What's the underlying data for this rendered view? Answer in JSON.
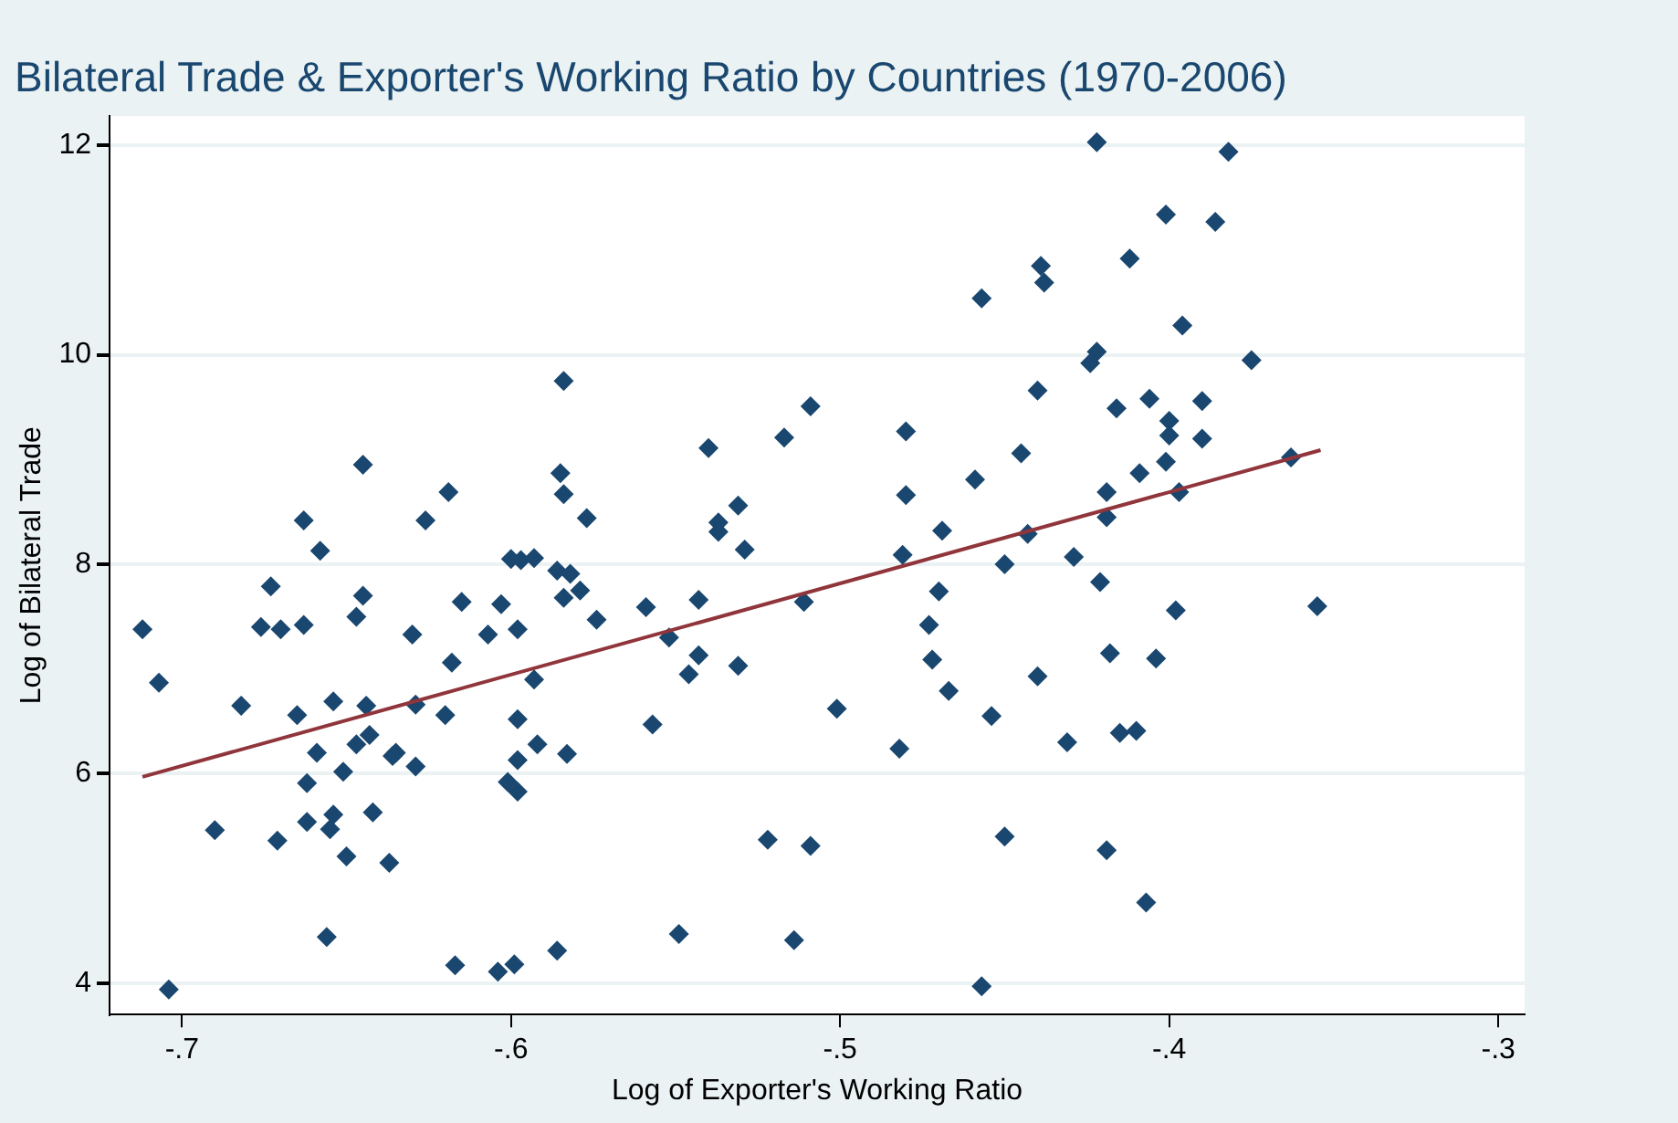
{
  "chart_data": {
    "type": "scatter",
    "title": "Bilateral Trade & Exporter's Working Ratio by Countries (1970-2006)",
    "xlabel": "Log of Exporter's Working Ratio",
    "ylabel": "Log of Bilateral Trade",
    "xlim": [
      -0.722,
      -0.292
    ],
    "ylim": [
      3.7,
      12.28
    ],
    "xticks": [
      {
        "value": -0.7,
        "label": "-.7"
      },
      {
        "value": -0.6,
        "label": "-.6"
      },
      {
        "value": -0.5,
        "label": "-.5"
      },
      {
        "value": -0.4,
        "label": "-.4"
      },
      {
        "value": -0.3,
        "label": "-.3"
      }
    ],
    "yticks": [
      4,
      6,
      8,
      10,
      12
    ],
    "grid": "y",
    "legend": false,
    "marker": "diamond",
    "series": [
      {
        "color": "#1a476f",
        "x": [
          -0.712,
          -0.707,
          -0.682,
          -0.69,
          -0.704,
          -0.676,
          -0.67,
          -0.673,
          -0.663,
          -0.658,
          -0.665,
          -0.654,
          -0.659,
          -0.662,
          -0.651,
          -0.654,
          -0.662,
          -0.655,
          -0.671,
          -0.65,
          -0.642,
          -0.637,
          -0.656,
          -0.645,
          -0.647,
          -0.644,
          -0.647,
          -0.643,
          -0.635,
          -0.636,
          -0.629,
          -0.629,
          -0.63,
          -0.618,
          -0.615,
          -0.62,
          -0.603,
          -0.607,
          -0.598,
          -0.6,
          -0.597,
          -0.593,
          -0.586,
          -0.582,
          -0.584,
          -0.579,
          -0.574,
          -0.593,
          -0.598,
          -0.592,
          -0.598,
          -0.583,
          -0.601,
          -0.598,
          -0.617,
          -0.604,
          -0.599,
          -0.586,
          -0.549,
          -0.514,
          -0.522,
          -0.509,
          -0.559,
          -0.543,
          -0.552,
          -0.543,
          -0.546,
          -0.531,
          -0.557,
          -0.511,
          -0.529,
          -0.584,
          -0.645,
          -0.619,
          -0.663,
          -0.626,
          -0.585,
          -0.584,
          -0.577,
          -0.54,
          -0.517,
          -0.509,
          -0.531,
          -0.537,
          -0.537,
          -0.422,
          -0.382,
          -0.401,
          -0.386,
          -0.412,
          -0.439,
          -0.438,
          -0.457,
          -0.396,
          -0.422,
          -0.424,
          -0.375,
          -0.44,
          -0.416,
          -0.406,
          -0.39,
          -0.4,
          -0.4,
          -0.39,
          -0.48,
          -0.445,
          -0.401,
          -0.409,
          -0.363,
          -0.459,
          -0.48,
          -0.419,
          -0.397,
          -0.419,
          -0.469,
          -0.443,
          -0.481,
          -0.45,
          -0.429,
          -0.421,
          -0.47,
          -0.473,
          -0.398,
          -0.355,
          -0.472,
          -0.467,
          -0.418,
          -0.404,
          -0.44,
          -0.501,
          -0.454,
          -0.482,
          -0.431,
          -0.415,
          -0.41,
          -0.45,
          -0.419,
          -0.407,
          -0.457
        ],
        "values": [
          7.38,
          6.87,
          6.65,
          5.46,
          3.94,
          7.4,
          7.38,
          7.79,
          7.42,
          8.13,
          6.56,
          6.69,
          6.2,
          5.91,
          6.02,
          5.61,
          5.54,
          5.47,
          5.36,
          5.21,
          5.63,
          5.15,
          4.44,
          7.7,
          7.5,
          6.65,
          6.28,
          6.37,
          6.2,
          6.17,
          6.07,
          6.66,
          7.33,
          7.06,
          7.64,
          6.56,
          7.62,
          7.33,
          7.38,
          8.05,
          8.04,
          8.06,
          7.94,
          7.91,
          7.68,
          7.75,
          7.47,
          6.9,
          6.52,
          6.28,
          6.13,
          6.19,
          5.92,
          5.83,
          4.17,
          4.11,
          4.18,
          4.31,
          4.47,
          4.41,
          5.37,
          5.31,
          7.59,
          7.66,
          7.3,
          7.13,
          6.95,
          7.03,
          6.47,
          7.64,
          8.14,
          9.75,
          8.95,
          8.69,
          8.42,
          8.42,
          8.87,
          8.67,
          8.44,
          9.11,
          9.21,
          9.51,
          8.56,
          8.4,
          8.31,
          12.03,
          11.94,
          11.34,
          11.27,
          10.92,
          10.85,
          10.69,
          10.54,
          10.28,
          10.03,
          9.92,
          9.95,
          9.66,
          9.49,
          9.58,
          9.56,
          9.37,
          9.23,
          9.2,
          9.27,
          9.06,
          8.98,
          8.87,
          9.02,
          8.81,
          8.66,
          8.69,
          8.69,
          8.45,
          8.32,
          8.29,
          8.09,
          8.0,
          8.07,
          7.83,
          7.74,
          7.42,
          7.56,
          7.6,
          7.09,
          6.79,
          7.15,
          7.1,
          6.93,
          6.62,
          6.55,
          6.24,
          6.3,
          6.39,
          6.41,
          5.4,
          5.27,
          4.77,
          3.97
        ]
      },
      {
        "type": "line",
        "color": "#90353b",
        "marker": "none",
        "x": [
          -0.712,
          -0.354
        ],
        "values": [
          5.97,
          9.09
        ]
      }
    ]
  }
}
